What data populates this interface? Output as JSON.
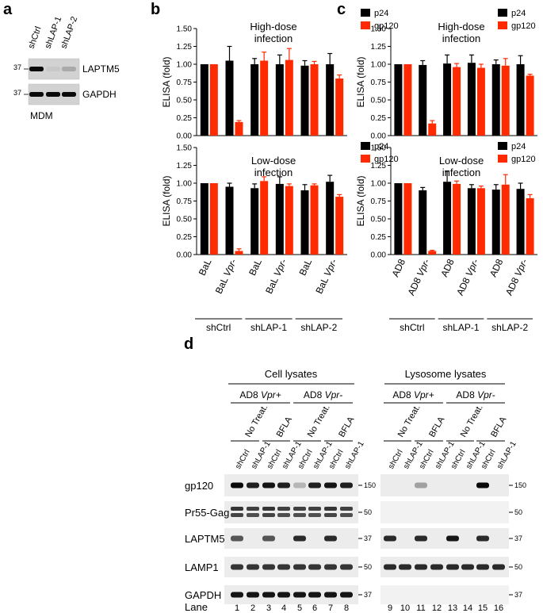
{
  "panel_labels": {
    "a": "a",
    "b": "b",
    "c": "c",
    "d": "d"
  },
  "panel_a": {
    "lanes": [
      "shCtrl",
      "shLAP-1",
      "shLAP-2"
    ],
    "rows": [
      {
        "marker": "37",
        "label": "LAPTM5",
        "intensity": [
          1.0,
          0.05,
          0.2
        ]
      },
      {
        "marker": "37",
        "label": "GAPDH",
        "intensity": [
          1.0,
          1.0,
          1.0
        ]
      }
    ],
    "footer": "MDM"
  },
  "colors": {
    "p24": "#000000",
    "gp120": "#ff2a00"
  },
  "legend": [
    "p24",
    "gp120"
  ],
  "ytick_labels": [
    "0.00",
    "0.25",
    "0.50",
    "0.75",
    "1.00",
    "1.25",
    "1.50"
  ],
  "xaxis_b": {
    "ticks": [
      "BaL",
      "BaL Vpr-",
      "BaL",
      "BaL Vpr-",
      "BaL",
      "BaL Vpr-"
    ],
    "groups": [
      "shCtrl",
      "shLAP-1",
      "shLAP-2"
    ]
  },
  "xaxis_c": {
    "ticks": [
      "AD8",
      "AD8 Vpr-",
      "AD8",
      "AD8 Vpr-",
      "AD8",
      "AD8 Vpr-"
    ],
    "groups": [
      "shCtrl",
      "shLAP-1",
      "shLAP-2"
    ]
  },
  "chart_data": [
    {
      "panel": "b",
      "type": "bar",
      "title": "High-dose infection",
      "ylabel": "ELISA (fold)",
      "ylim": [
        0,
        1.5
      ],
      "categories": [
        "BaL",
        "BaL Vpr-",
        "BaL",
        "BaL Vpr-",
        "BaL",
        "BaL Vpr-"
      ],
      "series": [
        {
          "name": "p24",
          "values": [
            1.0,
            1.05,
            1.0,
            1.0,
            0.98,
            1.0
          ],
          "errors": [
            0,
            0.2,
            0.08,
            0.13,
            0.07,
            0.15
          ]
        },
        {
          "name": "gp120",
          "values": [
            1.0,
            0.19,
            1.05,
            1.06,
            1.0,
            0.8
          ],
          "errors": [
            0,
            0.02,
            0.12,
            0.16,
            0.04,
            0.05
          ]
        }
      ]
    },
    {
      "panel": "b",
      "type": "bar",
      "title": "Low-dose infection",
      "ylabel": "ELISA (fold)",
      "ylim": [
        0,
        1.5
      ],
      "categories": [
        "BaL",
        "BaL Vpr-",
        "BaL",
        "BaL Vpr-",
        "BaL",
        "BaL Vpr-"
      ],
      "series": [
        {
          "name": "p24",
          "values": [
            1.0,
            0.95,
            0.93,
            0.99,
            0.9,
            1.02
          ],
          "errors": [
            0,
            0.05,
            0.06,
            0.1,
            0.08,
            0.09
          ]
        },
        {
          "name": "gp120",
          "values": [
            1.0,
            0.05,
            1.03,
            0.96,
            0.97,
            0.81
          ],
          "errors": [
            0,
            0.03,
            0.06,
            0.03,
            0.02,
            0.03
          ]
        }
      ]
    },
    {
      "panel": "c",
      "type": "bar",
      "title": "High-dose infection",
      "ylabel": "ELISA (fold)",
      "ylim": [
        0,
        1.5
      ],
      "categories": [
        "AD8",
        "AD8 Vpr-",
        "AD8",
        "AD8 Vpr-",
        "AD8",
        "AD8 Vpr-"
      ],
      "series": [
        {
          "name": "p24",
          "values": [
            1.0,
            0.99,
            1.01,
            1.02,
            1.0,
            1.0
          ],
          "errors": [
            0,
            0.06,
            0.12,
            0.11,
            0.06,
            0.12
          ]
        },
        {
          "name": "gp120",
          "values": [
            1.0,
            0.17,
            0.96,
            0.95,
            0.98,
            0.84
          ],
          "errors": [
            0,
            0.04,
            0.05,
            0.05,
            0.1,
            0.02
          ]
        }
      ]
    },
    {
      "panel": "c",
      "type": "bar",
      "title": "Low-dose infection",
      "ylabel": "ELISA (fold)",
      "ylim": [
        0,
        1.5
      ],
      "categories": [
        "AD8",
        "AD8 Vpr-",
        "AD8",
        "AD8 Vpr-",
        "AD8",
        "AD8 Vpr-"
      ],
      "series": [
        {
          "name": "p24",
          "values": [
            1.0,
            0.9,
            1.02,
            0.93,
            0.91,
            0.92
          ],
          "errors": [
            0,
            0.04,
            0.15,
            0.05,
            0.07,
            0.08
          ]
        },
        {
          "name": "gp120",
          "values": [
            1.0,
            0.05,
            0.99,
            0.93,
            0.98,
            0.79
          ],
          "errors": [
            0,
            0.01,
            0.04,
            0.03,
            0.14,
            0.05
          ]
        }
      ]
    }
  ],
  "panel_d": {
    "headers": {
      "cell": "Cell lysates",
      "lyso": "Lysosome lysates"
    },
    "virus": [
      "AD8 Vpr+",
      "AD8 Vpr-"
    ],
    "treatments": [
      "No Treat.",
      "BFLA"
    ],
    "lane_labels": [
      "shCtrl",
      "shLAP-1",
      "shCtrl",
      "shLAP-1",
      "shCtrl",
      "shLAP-1",
      "shCtrl",
      "shLAP-1"
    ],
    "rows": [
      {
        "label": "gp120",
        "marker": "150",
        "cell": [
          1.0,
          0.9,
          0.95,
          0.9,
          0.2,
          0.9,
          0.95,
          0.9
        ],
        "lyso": [
          0,
          0,
          0.3,
          0,
          0,
          0,
          1.0,
          0
        ]
      },
      {
        "label": "Pr55-Gag",
        "marker": "50",
        "cell": [
          0.8,
          0.75,
          0.8,
          0.75,
          0.75,
          0.75,
          0.8,
          0.75
        ],
        "lyso": [
          0,
          0,
          0,
          0,
          0,
          0,
          0,
          0
        ]
      },
      {
        "label": "LAPTM5",
        "marker": "37",
        "cell": [
          0.65,
          0,
          0.65,
          0,
          0.85,
          0,
          0.85,
          0
        ],
        "lyso": [
          0.85,
          0,
          0.85,
          0,
          0.95,
          0,
          0.85,
          0
        ]
      },
      {
        "label": "LAMP1",
        "marker": "50",
        "cell": [
          0.8,
          0.8,
          0.8,
          0.8,
          0.8,
          0.8,
          0.8,
          0.8
        ],
        "lyso": [
          0.85,
          0.85,
          0.85,
          0.85,
          0.85,
          0.85,
          0.85,
          0.85
        ]
      },
      {
        "label": "GAPDH",
        "marker": "37",
        "cell": [
          0.95,
          0.95,
          0.95,
          0.95,
          0.95,
          0.95,
          0.95,
          0.95
        ],
        "lyso": [
          0,
          0,
          0,
          0,
          0,
          0,
          0,
          0
        ]
      }
    ],
    "lane_word": "Lane",
    "lane_numbers": [
      "1",
      "2",
      "3",
      "4",
      "5",
      "6",
      "7",
      "8",
      "9",
      "10",
      "11",
      "12",
      "13",
      "14",
      "15",
      "16"
    ]
  }
}
